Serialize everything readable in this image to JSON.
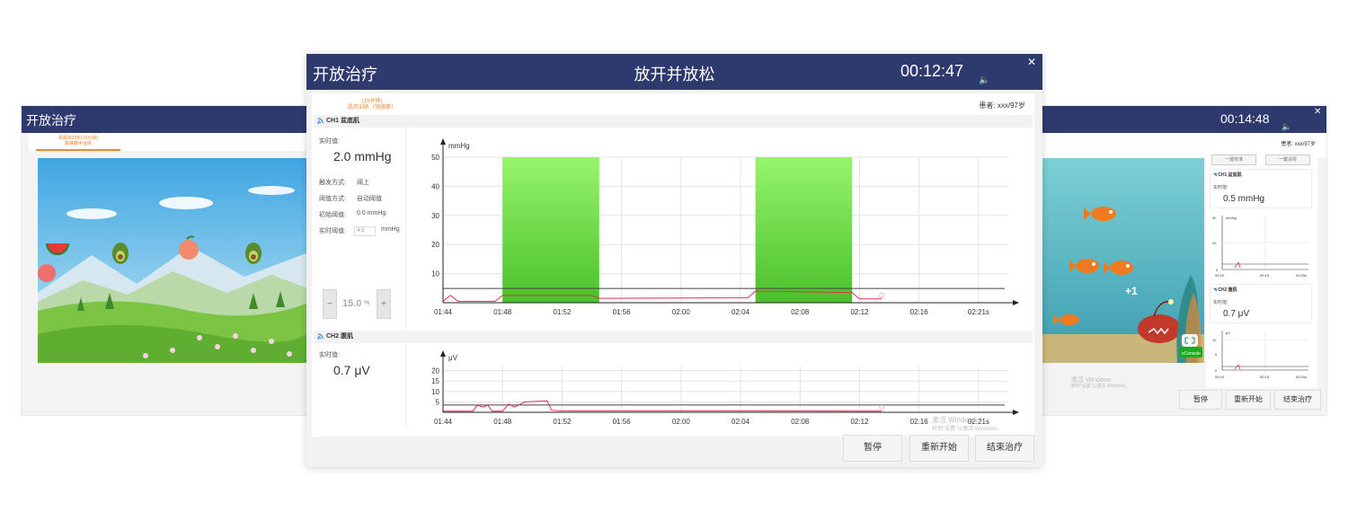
{
  "left_window": {
    "title": "开放治疗",
    "tab_lines": [
      "录图课28秒(15分钟)",
      "躯峰趣手运练"
    ],
    "game": "fruit-catch-scene"
  },
  "right_window": {
    "time": "00:14:48",
    "patient": "患者: xxx/97岁",
    "game": "fish-sea-scene",
    "floating_score": "+1",
    "badge": "vConsole",
    "buttons_top": [
      "一键校准",
      "一键清零"
    ],
    "ch1": {
      "title": "CH1 盆底肌",
      "realtime_label": "实时值:",
      "value": "0.5 mmHg",
      "unit": "mmHg",
      "y_ticks": [
        "50",
        "25",
        "0"
      ],
      "x_ticks": [
        "00:10",
        "00:15",
        "00:20s"
      ]
    },
    "ch2": {
      "title": "CH2 腹肌",
      "realtime_label": "实时值:",
      "value": "0.7 μV",
      "unit": "μV",
      "y_ticks": [
        "10",
        "5",
        "0"
      ],
      "x_ticks": [
        "00:10",
        "00:15",
        "00:20s"
      ]
    },
    "watermark_line1": "激活 Windows",
    "watermark_line2": "转到\"设置\"以激活 Windows。",
    "buttons": {
      "pause": "暂停",
      "restart": "重新开始",
      "end": "结束治疗"
    }
  },
  "main_window": {
    "app_title": "开放治疗",
    "center_title": "放开并放松",
    "timer": "00:12:47",
    "tab_line1": "(15分钟)",
    "tab_line2": "肌肉训练（领施第）",
    "patient": "患者: xxx/97岁",
    "ch1": {
      "title": "CH1 盆底肌",
      "realtime_label": "实时值:",
      "value": "2.0 mmHg",
      "trigger_label": "触发方式:",
      "trigger_value": "阈上",
      "threshold_mode_label": "阈值方式:",
      "threshold_mode_value": "自动阈值",
      "initial_threshold_label": "初始阈值:",
      "initial_threshold_value": "0.0 mmHg",
      "realtime_threshold_label": "实时阈值:",
      "realtime_threshold_value": "4.9",
      "realtime_threshold_unit": "mmHg",
      "stepper_minus": "−",
      "stepper_value": "15.0",
      "stepper_unit": "%",
      "stepper_plus": "+"
    },
    "ch2": {
      "title": "CH2 腹肌",
      "realtime_label": "实时值:",
      "value": "0.7 μV"
    },
    "buttons": {
      "pause": "暂停",
      "restart": "重新开始",
      "end": "结束治疗"
    },
    "watermark_line1": "激活 Windows",
    "watermark_line2": "转到\"设置\"以激活 Windows。"
  },
  "chart_data": [
    {
      "type": "line",
      "title": "",
      "ylabel": "mmHg",
      "xlabel": "",
      "x_ticks": [
        "01:44",
        "01:48",
        "01:52",
        "01:56",
        "02:00",
        "02:04",
        "02:08",
        "02:12",
        "02:16",
        "02:21s"
      ],
      "y_ticks": [
        10,
        20,
        30,
        40,
        50
      ],
      "ylim": [
        0,
        50
      ],
      "grid": true,
      "target_blocks": [
        {
          "x_start": "01:48",
          "x_end": "01:54.5",
          "height": 50,
          "color": "#6fdc4f"
        },
        {
          "x_start": "02:05",
          "x_end": "02:11.5",
          "height": 50,
          "color": "#6fdc4f"
        }
      ],
      "threshold_line": 4.9,
      "series": [
        {
          "color": "#e0304a",
          "x": [
            "01:44",
            "01:44.5",
            "01:45",
            "01:47.5",
            "01:48",
            "01:54",
            "01:54.5",
            "02:04.5",
            "02:05",
            "02:11.5",
            "02:12",
            "02:13.5"
          ],
          "values": [
            0.5,
            2.5,
            0.5,
            0.5,
            2.5,
            2.5,
            1.5,
            1.7,
            4.0,
            3.5,
            1.3,
            1.3
          ]
        }
      ]
    },
    {
      "type": "line",
      "title": "",
      "ylabel": "μV",
      "xlabel": "",
      "x_ticks": [
        "01:44",
        "01:48",
        "01:52",
        "01:56",
        "02:00",
        "02:04",
        "02:08",
        "02:12",
        "02:16",
        "02:21s"
      ],
      "y_ticks": [
        5,
        10,
        15,
        20
      ],
      "ylim": [
        0,
        22
      ],
      "grid": true,
      "threshold_line": 3.5,
      "series": [
        {
          "color": "#e0304a",
          "x": [
            "01:44",
            "01:46",
            "01:46.3",
            "01:46.7",
            "01:47",
            "01:47.3",
            "01:48",
            "01:48.4",
            "01:48.8",
            "01:49.5",
            "01:51",
            "01:51.3",
            "01:52",
            "02:04",
            "02:12",
            "02:13.5"
          ],
          "values": [
            0.5,
            0.5,
            3.5,
            2.5,
            3.5,
            0.5,
            0.5,
            4.0,
            2.5,
            5.0,
            5.5,
            1.0,
            0.7,
            0.7,
            0.6,
            0.6
          ]
        }
      ]
    }
  ]
}
